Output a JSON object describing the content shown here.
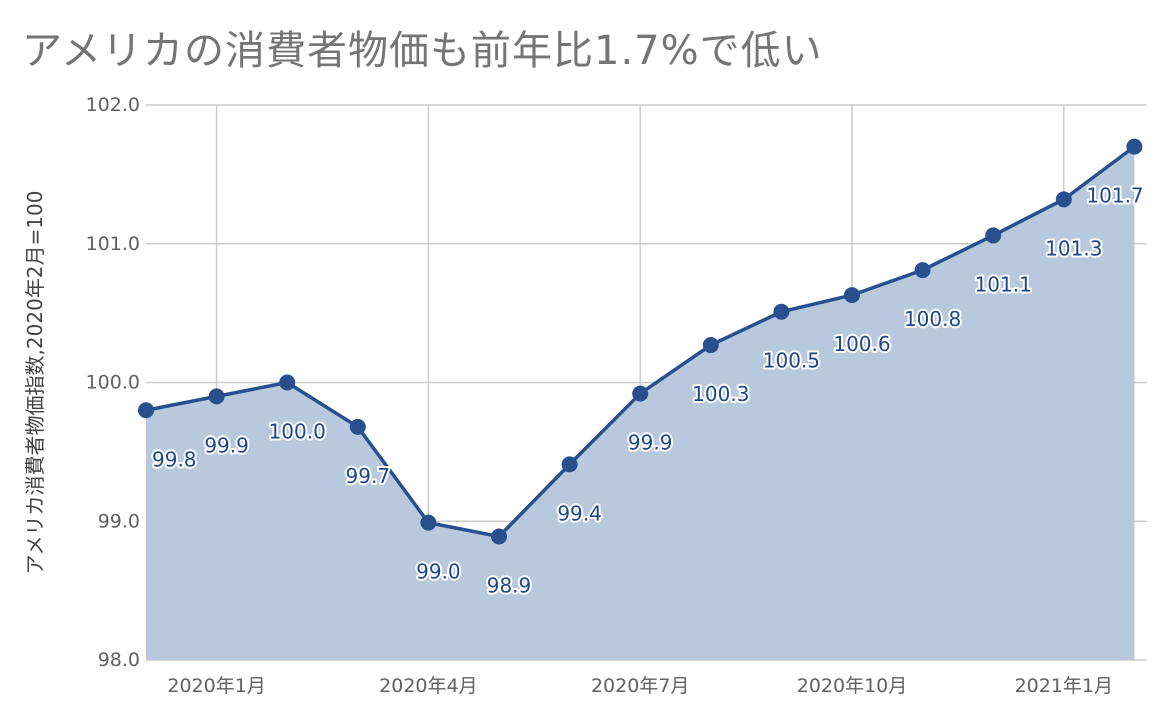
{
  "title": "アメリカの消費者物価も前年比1.7%で低い",
  "colors": {
    "line": "#28508f",
    "area": "#b8c9de",
    "grid": "#cccccc",
    "label": "#1f4788"
  },
  "chart_data": {
    "type": "area",
    "title": "アメリカの消費者物価も前年比1.7%で低い",
    "xlabel": "",
    "ylabel": "アメリカ消費者物価指数,2020年2月=100",
    "ylim": [
      98.0,
      102.0
    ],
    "yticks": [
      "102.0",
      "101.0",
      "100.0",
      "99.0",
      "98.0"
    ],
    "x": [
      "2019-12",
      "2020-01",
      "2020-02",
      "2020-03",
      "2020-04",
      "2020-05",
      "2020-06",
      "2020-07",
      "2020-08",
      "2020-09",
      "2020-10",
      "2020-11",
      "2020-12",
      "2021-01",
      "2021-02"
    ],
    "xticks": [
      {
        "x": "2020-01",
        "label": "2020年1月"
      },
      {
        "x": "2020-04",
        "label": "2020年4月"
      },
      {
        "x": "2020-07",
        "label": "2020年7月"
      },
      {
        "x": "2020-10",
        "label": "2020年10月"
      },
      {
        "x": "2021-01",
        "label": "2021年1月"
      }
    ],
    "series": [
      {
        "values": [
          99.8,
          99.9,
          100.0,
          99.68,
          98.99,
          98.89,
          99.41,
          99.92,
          100.27,
          100.51,
          100.63,
          100.81,
          101.06,
          101.32,
          101.7
        ],
        "labels": [
          "99.8",
          "99.9",
          "100.0",
          "99.7",
          "99.0",
          "98.9",
          "99.4",
          "99.9",
          "100.3",
          "100.5",
          "100.6",
          "100.8",
          "101.1",
          "101.3",
          "101.7"
        ]
      }
    ],
    "grid": true,
    "legend": "none"
  }
}
